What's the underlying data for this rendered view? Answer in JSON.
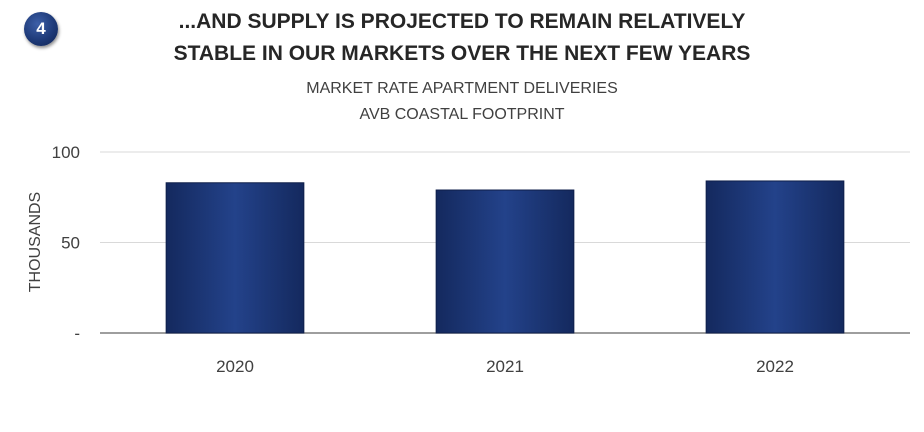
{
  "badge": {
    "number": "4"
  },
  "header": {
    "title_line1": "...AND SUPPLY IS PROJECTED TO REMAIN RELATIVELY",
    "title_line2": "STABLE IN OUR MARKETS OVER THE NEXT FEW YEARS"
  },
  "chart_data": {
    "type": "bar",
    "title": "MARKET RATE APARTMENT DELIVERIES",
    "subtitle": "AVB COASTAL FOOTPRINT",
    "categories": [
      "2020",
      "2021",
      "2022"
    ],
    "values": [
      83,
      79,
      84
    ],
    "xlabel": "",
    "ylabel": "THOUSANDS",
    "ylim": [
      0,
      100
    ],
    "yticks": [
      0,
      50,
      100
    ],
    "ytick_labels": [
      "-",
      "50",
      "100"
    ],
    "grid": true,
    "legend": "none",
    "bar_color": "#1f3a7a"
  }
}
